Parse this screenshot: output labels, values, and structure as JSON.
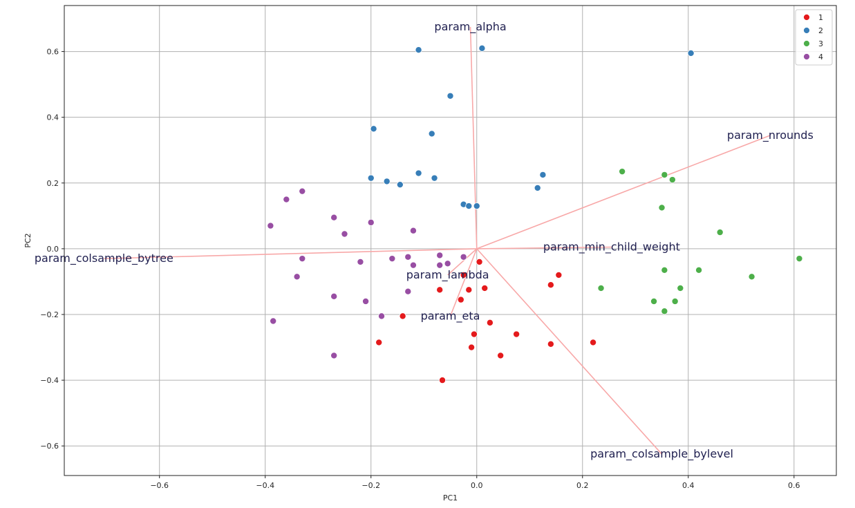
{
  "chart_data": {
    "type": "scatter",
    "title": "",
    "xlabel": "PC1",
    "ylabel": "PC2",
    "xlim": [
      -0.78,
      0.68
    ],
    "ylim": [
      -0.69,
      0.74
    ],
    "xticks": [
      -0.6,
      -0.4,
      -0.2,
      0.0,
      0.2,
      0.4,
      0.6
    ],
    "yticks": [
      -0.6,
      -0.4,
      -0.2,
      0.0,
      0.2,
      0.4,
      0.6
    ],
    "xtick_labels": [
      "−0.6",
      "−0.4",
      "−0.2",
      "0.0",
      "0.2",
      "0.4",
      "0.6"
    ],
    "ytick_labels": [
      "−0.6",
      "−0.4",
      "−0.2",
      "0.0",
      "0.2",
      "0.4",
      "0.6"
    ],
    "grid": true,
    "legend_position": "top-right",
    "series": [
      {
        "name": "1",
        "color": "#e41a1c",
        "points": [
          [
            -0.065,
            -0.4
          ],
          [
            -0.185,
            -0.285
          ],
          [
            -0.14,
            -0.205
          ],
          [
            -0.07,
            -0.125
          ],
          [
            -0.03,
            -0.155
          ],
          [
            -0.015,
            -0.125
          ],
          [
            0.015,
            -0.12
          ],
          [
            0.005,
            -0.04
          ],
          [
            -0.025,
            -0.08
          ],
          [
            -0.005,
            -0.26
          ],
          [
            -0.01,
            -0.3
          ],
          [
            0.025,
            -0.225
          ],
          [
            0.045,
            -0.325
          ],
          [
            0.075,
            -0.26
          ],
          [
            0.14,
            -0.11
          ],
          [
            0.155,
            -0.08
          ],
          [
            0.14,
            -0.29
          ],
          [
            0.22,
            -0.285
          ]
        ]
      },
      {
        "name": "2",
        "color": "#377eb8",
        "points": [
          [
            -0.11,
            0.605
          ],
          [
            0.01,
            0.61
          ],
          [
            0.405,
            0.595
          ],
          [
            -0.05,
            0.465
          ],
          [
            -0.195,
            0.365
          ],
          [
            -0.085,
            0.35
          ],
          [
            -0.2,
            0.215
          ],
          [
            -0.17,
            0.205
          ],
          [
            -0.145,
            0.195
          ],
          [
            -0.11,
            0.23
          ],
          [
            -0.08,
            0.215
          ],
          [
            -0.025,
            0.135
          ],
          [
            -0.015,
            0.13
          ],
          [
            0.0,
            0.13
          ],
          [
            0.115,
            0.185
          ],
          [
            0.125,
            0.225
          ]
        ]
      },
      {
        "name": "3",
        "color": "#4daf4a",
        "points": [
          [
            0.275,
            0.235
          ],
          [
            0.355,
            0.225
          ],
          [
            0.37,
            0.21
          ],
          [
            0.35,
            0.125
          ],
          [
            0.46,
            0.05
          ],
          [
            0.61,
            -0.03
          ],
          [
            0.52,
            -0.085
          ],
          [
            0.355,
            -0.065
          ],
          [
            0.42,
            -0.065
          ],
          [
            0.385,
            -0.12
          ],
          [
            0.235,
            -0.12
          ],
          [
            0.335,
            -0.16
          ],
          [
            0.375,
            -0.16
          ],
          [
            0.355,
            -0.19
          ]
        ]
      },
      {
        "name": "4",
        "color": "#984ea3",
        "points": [
          [
            -0.33,
            0.175
          ],
          [
            -0.36,
            0.15
          ],
          [
            -0.27,
            0.095
          ],
          [
            -0.25,
            0.045
          ],
          [
            -0.2,
            0.08
          ],
          [
            -0.12,
            0.055
          ],
          [
            -0.39,
            0.07
          ],
          [
            -0.33,
            -0.03
          ],
          [
            -0.22,
            -0.04
          ],
          [
            -0.16,
            -0.03
          ],
          [
            -0.13,
            -0.025
          ],
          [
            -0.12,
            -0.05
          ],
          [
            -0.07,
            -0.02
          ],
          [
            -0.07,
            -0.05
          ],
          [
            -0.055,
            -0.045
          ],
          [
            -0.025,
            -0.025
          ],
          [
            -0.34,
            -0.085
          ],
          [
            -0.27,
            -0.145
          ],
          [
            -0.21,
            -0.16
          ],
          [
            -0.13,
            -0.13
          ],
          [
            -0.18,
            -0.205
          ],
          [
            -0.385,
            -0.22
          ],
          [
            -0.27,
            -0.325
          ]
        ]
      }
    ],
    "loadings": [
      {
        "name": "param_alpha",
        "x": -0.012,
        "y": 0.675
      },
      {
        "name": "param_nrounds",
        "x": 0.555,
        "y": 0.345
      },
      {
        "name": "param_min_child_weight",
        "x": 0.255,
        "y": 0.005
      },
      {
        "name": "param_colsample_bytree",
        "x": -0.705,
        "y": -0.03
      },
      {
        "name": "param_lambda",
        "x": -0.055,
        "y": -0.08
      },
      {
        "name": "param_eta",
        "x": -0.05,
        "y": -0.205
      },
      {
        "name": "param_colsample_bylevel",
        "x": 0.35,
        "y": -0.625
      }
    ],
    "arrow_color": "#f8a8a8",
    "label_color": "#1f1f4f"
  }
}
